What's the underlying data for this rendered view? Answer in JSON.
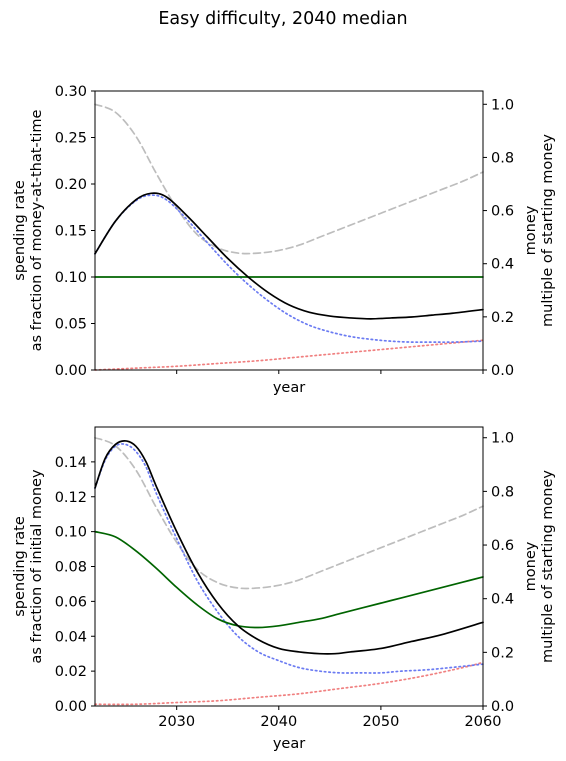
{
  "figure": {
    "title": "Easy difficulty, 2040 median"
  },
  "colors": {
    "black": "#000000",
    "green": "#006400",
    "blue_dotted": "#6b7bf2",
    "red_dotted": "#f08080",
    "gray_dashed": "#bdbdbd"
  },
  "chart_data": [
    {
      "type": "line",
      "panel": "top",
      "x_range": [
        2022,
        2060
      ],
      "x_ticks": [
        2030,
        2040,
        2050,
        2060
      ],
      "x_tick_labels_shown": false,
      "xlabel": "year",
      "ylabel_line1": "spending rate",
      "ylabel_line2": "as fraction of money-at-that-time",
      "ylim": [
        0,
        0.3
      ],
      "y_ticks": [
        "0.00",
        "0.05",
        "0.10",
        "0.15",
        "0.20",
        "0.25",
        "0.30"
      ],
      "y2label_line1": "money",
      "y2label_line2": "multiple of starting money",
      "y2lim": [
        0,
        1.05
      ],
      "y2_ticks": [
        "0.0",
        "0.2",
        "0.4",
        "0.6",
        "0.8",
        "1.0"
      ],
      "grid": false,
      "series": [
        {
          "color": "black",
          "style": "solid",
          "axis": "left",
          "x": [
            2022,
            2024,
            2026,
            2027.5,
            2029,
            2031,
            2033,
            2035,
            2037,
            2039,
            2041,
            2043,
            2045,
            2047,
            2049,
            2051,
            2053,
            2055,
            2057,
            2060
          ],
          "y": [
            0.125,
            0.16,
            0.183,
            0.19,
            0.186,
            0.166,
            0.143,
            0.12,
            0.1,
            0.083,
            0.07,
            0.062,
            0.058,
            0.056,
            0.055,
            0.056,
            0.057,
            0.059,
            0.061,
            0.065
          ]
        },
        {
          "color": "green",
          "style": "solid",
          "axis": "left",
          "x": [
            2022,
            2060
          ],
          "y": [
            0.1,
            0.1
          ]
        },
        {
          "color": "blue_dotted",
          "style": "dotted",
          "axis": "left",
          "x": [
            2022,
            2024,
            2026,
            2027.5,
            2029,
            2031,
            2033,
            2035,
            2037,
            2039,
            2041,
            2043,
            2045,
            2047,
            2049,
            2051,
            2053,
            2055,
            2057,
            2060
          ],
          "y": [
            0.125,
            0.16,
            0.182,
            0.188,
            0.183,
            0.162,
            0.137,
            0.113,
            0.092,
            0.074,
            0.059,
            0.048,
            0.041,
            0.036,
            0.033,
            0.031,
            0.03,
            0.03,
            0.03,
            0.031
          ]
        },
        {
          "color": "red_dotted",
          "style": "dotted",
          "axis": "left",
          "x": [
            2022,
            2026,
            2030,
            2034,
            2038,
            2042,
            2046,
            2050,
            2054,
            2058,
            2060
          ],
          "y": [
            0.0,
            0.002,
            0.004,
            0.007,
            0.01,
            0.014,
            0.018,
            0.022,
            0.026,
            0.03,
            0.032
          ]
        },
        {
          "color": "gray_dashed",
          "style": "dashed",
          "axis": "right",
          "x": [
            2022,
            2024,
            2026,
            2028,
            2030,
            2032,
            2034,
            2036,
            2038,
            2040,
            2042,
            2044,
            2046,
            2048,
            2050,
            2052,
            2054,
            2056,
            2058,
            2060
          ],
          "y": [
            1.0,
            0.97,
            0.88,
            0.74,
            0.61,
            0.51,
            0.46,
            0.44,
            0.44,
            0.45,
            0.47,
            0.5,
            0.53,
            0.56,
            0.59,
            0.62,
            0.65,
            0.68,
            0.71,
            0.745
          ]
        }
      ]
    },
    {
      "type": "line",
      "panel": "bottom",
      "x_range": [
        2022,
        2060
      ],
      "x_ticks": [
        2030,
        2040,
        2050,
        2060
      ],
      "x_tick_labels": [
        "2030",
        "2040",
        "2050",
        "2060"
      ],
      "xlabel": "year",
      "ylabel_line1": "spending rate",
      "ylabel_line2": "as fraction of initial money",
      "ylim": [
        0,
        0.16
      ],
      "y_ticks": [
        "0.00",
        "0.02",
        "0.04",
        "0.06",
        "0.08",
        "0.10",
        "0.12",
        "0.14"
      ],
      "y2label_line1": "money",
      "y2label_line2": "multiple of starting money",
      "y2lim": [
        0,
        1.04
      ],
      "y2_ticks": [
        "0.0",
        "0.2",
        "0.4",
        "0.6",
        "0.8",
        "1.0"
      ],
      "grid": false,
      "series": [
        {
          "color": "black",
          "style": "solid",
          "axis": "left",
          "x": [
            2022,
            2023,
            2024,
            2025,
            2026,
            2027,
            2028,
            2030,
            2032,
            2034,
            2036,
            2038,
            2040,
            2042,
            2044,
            2045.5,
            2047,
            2050,
            2053,
            2056,
            2060
          ],
          "y": [
            0.125,
            0.142,
            0.15,
            0.152,
            0.149,
            0.14,
            0.126,
            0.1,
            0.077,
            0.059,
            0.046,
            0.038,
            0.033,
            0.031,
            0.03,
            0.03,
            0.031,
            0.033,
            0.037,
            0.041,
            0.048
          ]
        },
        {
          "color": "green",
          "style": "solid",
          "axis": "left",
          "x": [
            2022,
            2024,
            2026,
            2028,
            2030,
            2032,
            2034,
            2036,
            2038,
            2040,
            2042,
            2044,
            2046,
            2048,
            2050,
            2052,
            2054,
            2056,
            2058,
            2060
          ],
          "y": [
            0.1,
            0.097,
            0.089,
            0.079,
            0.068,
            0.058,
            0.05,
            0.046,
            0.045,
            0.046,
            0.048,
            0.05,
            0.053,
            0.056,
            0.059,
            0.062,
            0.065,
            0.068,
            0.071,
            0.074
          ]
        },
        {
          "color": "blue_dotted",
          "style": "dotted",
          "axis": "left",
          "x": [
            2022,
            2023,
            2024,
            2025,
            2026,
            2027,
            2028,
            2030,
            2032,
            2034,
            2036,
            2038,
            2040,
            2042,
            2044,
            2046,
            2048,
            2050,
            2052,
            2055,
            2060
          ],
          "y": [
            0.125,
            0.141,
            0.149,
            0.15,
            0.146,
            0.137,
            0.122,
            0.096,
            0.072,
            0.054,
            0.04,
            0.031,
            0.026,
            0.022,
            0.02,
            0.019,
            0.019,
            0.019,
            0.02,
            0.021,
            0.024
          ]
        },
        {
          "color": "red_dotted",
          "style": "dotted",
          "axis": "left",
          "x": [
            2022,
            2026,
            2030,
            2034,
            2038,
            2042,
            2046,
            2050,
            2054,
            2058,
            2060
          ],
          "y": [
            0.001,
            0.001,
            0.002,
            0.003,
            0.005,
            0.007,
            0.01,
            0.013,
            0.017,
            0.022,
            0.025
          ]
        },
        {
          "color": "gray_dashed",
          "style": "dashed",
          "axis": "right",
          "x": [
            2022,
            2024,
            2026,
            2028,
            2030,
            2032,
            2034,
            2036,
            2038,
            2040,
            2042,
            2044,
            2046,
            2048,
            2050,
            2052,
            2054,
            2056,
            2058,
            2060
          ],
          "y": [
            1.0,
            0.97,
            0.88,
            0.74,
            0.61,
            0.51,
            0.46,
            0.44,
            0.44,
            0.45,
            0.47,
            0.5,
            0.53,
            0.56,
            0.59,
            0.62,
            0.65,
            0.68,
            0.71,
            0.745
          ]
        }
      ]
    }
  ]
}
